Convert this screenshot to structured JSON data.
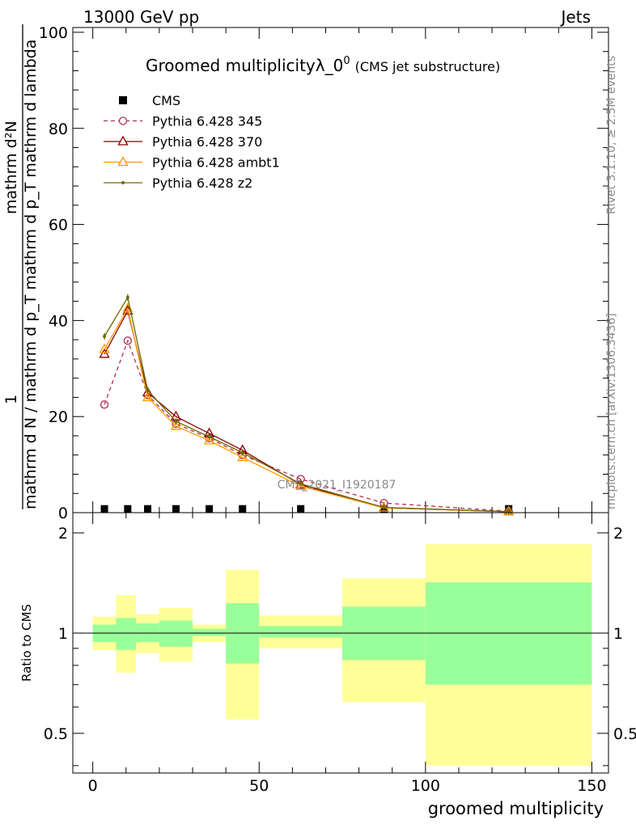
{
  "header": {
    "left": "13000 GeV pp",
    "right": "Jets"
  },
  "title": {
    "main": "Groomed multiplicityλ_0",
    "sup": "0",
    "sub": "(CMS jet substructure)"
  },
  "side_labels": {
    "rivet": "Rivet 3.1.10, ≥ 2.5M events",
    "mcplots": "mcplots.cern.ch [arXiv:1306.3436]"
  },
  "watermark": "CMS_2021_I1920187",
  "ylabel_main": {
    "numerator": "mathrm d²N",
    "denominator": "mathrm d N / mathrm d p_T mathrm d p_T mathrm d lambda",
    "one": "1"
  },
  "ylabel_ratio": "Ratio to CMS",
  "xlabel": "groomed multiplicity",
  "legend": [
    {
      "label": "CMS",
      "color": "#000000",
      "marker": "square",
      "dashed": false
    },
    {
      "label": "Pythia 6.428 345",
      "color": "#b03050",
      "marker": "open-circle",
      "dashed": true
    },
    {
      "label": "Pythia 6.428 370",
      "color": "#8b0000",
      "marker": "open-triangle",
      "dashed": false
    },
    {
      "label": "Pythia 6.428 ambt1",
      "color": "#ff9900",
      "marker": "open-triangle",
      "dashed": false
    },
    {
      "label": "Pythia 6.428 z2",
      "color": "#6b6b00",
      "marker": "dot",
      "dashed": false
    }
  ],
  "chart_data": [
    {
      "type": "line",
      "xlabel": "",
      "ylabel": "",
      "xlim": [
        -6,
        155
      ],
      "ylim": [
        0,
        101
      ],
      "x_ticks": [
        0,
        50,
        100,
        150
      ],
      "y_ticks": [
        0,
        20,
        40,
        60,
        80,
        100
      ],
      "bin_edges": [
        0,
        7,
        13,
        20,
        30,
        40,
        50,
        75,
        100,
        150
      ],
      "series": [
        {
          "name": "CMS",
          "x": [
            3.5,
            10.5,
            16.5,
            25,
            35,
            45,
            62.5,
            87.5,
            125
          ],
          "values": [
            0.05,
            0.05,
            0.05,
            0.05,
            0.05,
            0.05,
            0.05,
            0.05,
            0.05
          ]
        },
        {
          "name": "Pythia 6.428 345",
          "x": [
            3.5,
            10.5,
            16.5,
            25,
            35,
            45,
            62.5,
            87.5,
            125
          ],
          "values": [
            22.5,
            35.8,
            24.5,
            18.5,
            15.5,
            12.0,
            7.0,
            2.0,
            0.3
          ]
        },
        {
          "name": "Pythia 6.428 370",
          "x": [
            3.5,
            10.5,
            16.5,
            25,
            35,
            45,
            62.5,
            87.5,
            125
          ],
          "values": [
            33.0,
            42.0,
            25.0,
            20.0,
            16.5,
            13.0,
            5.8,
            1.0,
            0.2
          ]
        },
        {
          "name": "Pythia 6.428 ambt1",
          "x": [
            3.5,
            10.5,
            16.5,
            25,
            35,
            45,
            62.5,
            87.5,
            125
          ],
          "values": [
            34.0,
            42.5,
            24.0,
            18.0,
            15.0,
            11.5,
            5.5,
            1.0,
            0.2
          ]
        },
        {
          "name": "Pythia 6.428 z2",
          "x": [
            3.5,
            10.5,
            16.5,
            25,
            35,
            45,
            62.5,
            87.5,
            125
          ],
          "values": [
            36.7,
            44.8,
            25.5,
            19.0,
            15.8,
            12.5,
            6.0,
            1.1,
            0.2
          ]
        }
      ]
    },
    {
      "type": "area",
      "ylabel": "Ratio to CMS",
      "xlabel": "groomed multiplicity",
      "xlim": [
        -6,
        155
      ],
      "ylim": [
        0.38,
        2.3
      ],
      "x_ticks": [
        0,
        50,
        100,
        150
      ],
      "y_ticks": [
        0.5,
        1,
        2
      ],
      "reference_line": 1,
      "bands": {
        "bin_edges": [
          0,
          7,
          13,
          20,
          30,
          40,
          50,
          75,
          100,
          150
        ],
        "inner_lo": [
          0.94,
          0.89,
          0.94,
          0.91,
          0.98,
          0.81,
          0.97,
          0.83,
          0.7
        ],
        "inner_hi": [
          1.06,
          1.11,
          1.07,
          1.09,
          1.03,
          1.23,
          1.05,
          1.2,
          1.42
        ],
        "outer_lo": [
          0.89,
          0.76,
          0.87,
          0.82,
          0.94,
          0.55,
          0.9,
          0.62,
          0.4
        ],
        "outer_hi": [
          1.12,
          1.3,
          1.14,
          1.19,
          1.06,
          1.55,
          1.13,
          1.46,
          1.85
        ],
        "inner_color": "#99ff99",
        "outer_color": "#ffff99"
      }
    }
  ]
}
